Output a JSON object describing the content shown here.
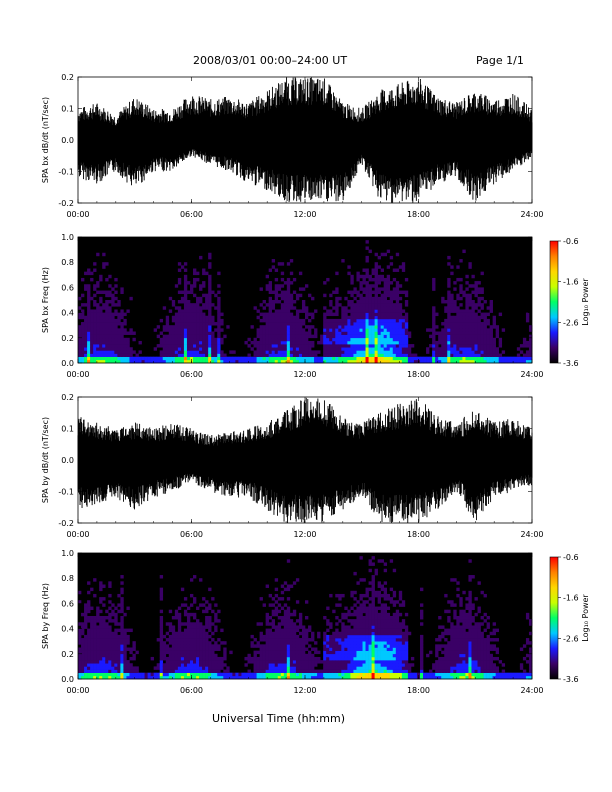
{
  "header": {
    "title": "2008/03/01   00:00–24:00 UT",
    "page": "Page 1/1"
  },
  "footer": {
    "xlabel": "Universal Time (hh:mm)"
  },
  "chart_data": [
    {
      "type": "line",
      "ylabel": "SPA bx dB/dt (nT/sec)",
      "xlim": [
        0,
        24
      ],
      "ylim": [
        -0.2,
        0.2
      ],
      "xticks": [
        "00:00",
        "06:00",
        "12:00",
        "18:00",
        "24:00"
      ],
      "yticks": [
        "-0.2",
        "-0.1",
        "0.0",
        "0.1",
        "0.2"
      ],
      "envelope": {
        "hours": [
          0,
          1,
          2,
          3,
          4,
          5,
          6,
          7,
          8,
          9,
          10,
          11,
          12,
          13,
          14,
          15,
          16,
          17,
          18,
          19,
          20,
          21,
          22,
          23,
          24
        ],
        "upper": [
          0.1,
          0.12,
          0.08,
          0.14,
          0.1,
          0.1,
          0.15,
          0.13,
          0.14,
          0.12,
          0.16,
          0.2,
          0.2,
          0.2,
          0.12,
          0.1,
          0.16,
          0.18,
          0.2,
          0.14,
          0.12,
          0.16,
          0.13,
          0.15,
          0.1
        ],
        "lower": [
          -0.12,
          -0.14,
          -0.1,
          -0.16,
          -0.1,
          -0.1,
          -0.05,
          -0.08,
          -0.1,
          -0.14,
          -0.16,
          -0.2,
          -0.2,
          -0.2,
          -0.2,
          -0.08,
          -0.2,
          -0.2,
          -0.2,
          -0.14,
          -0.12,
          -0.2,
          -0.14,
          -0.1,
          -0.06
        ]
      }
    },
    {
      "type": "heatmap",
      "ylabel": "SPA bx Freq (Hz)",
      "xlim": [
        0,
        24
      ],
      "ylim": [
        0.0,
        1.0
      ],
      "xticks": [
        "00:00",
        "06:00",
        "12:00",
        "18:00",
        "24:00"
      ],
      "yticks": [
        "0.0",
        "0.2",
        "0.4",
        "0.6",
        "0.8",
        "1.0"
      ],
      "colorbar": {
        "label": "Log₁₀ Power",
        "range": [
          -3.6,
          -0.6
        ],
        "ticks": [
          "-0.6",
          "-1.6",
          "-2.6",
          "-3.6"
        ],
        "colors": [
          "#000000",
          "#3a0066",
          "#1a1aff",
          "#00c8ff",
          "#00ff66",
          "#c8ff00",
          "#ffd700",
          "#ff8000",
          "#ff0000"
        ]
      }
    },
    {
      "type": "line",
      "ylabel": "SPA by dB/dt (nT/sec)",
      "xlim": [
        0,
        24
      ],
      "ylim": [
        -0.2,
        0.2
      ],
      "xticks": [
        "00:00",
        "06:00",
        "12:00",
        "18:00",
        "24:00"
      ],
      "yticks": [
        "-0.2",
        "-0.1",
        "0.0",
        "0.1",
        "0.2"
      ],
      "envelope": {
        "hours": [
          0,
          1,
          2,
          3,
          4,
          5,
          6,
          7,
          8,
          9,
          10,
          11,
          12,
          13,
          14,
          15,
          16,
          17,
          18,
          19,
          20,
          21,
          22,
          23,
          24
        ],
        "upper": [
          0.14,
          0.12,
          0.1,
          0.12,
          0.1,
          0.12,
          0.1,
          0.08,
          0.09,
          0.1,
          0.12,
          0.16,
          0.2,
          0.2,
          0.14,
          0.12,
          0.16,
          0.18,
          0.2,
          0.14,
          0.12,
          0.16,
          0.12,
          0.14,
          0.1
        ],
        "lower": [
          -0.16,
          -0.14,
          -0.12,
          -0.16,
          -0.12,
          -0.1,
          -0.07,
          -0.1,
          -0.12,
          -0.12,
          -0.16,
          -0.2,
          -0.2,
          -0.2,
          -0.16,
          -0.12,
          -0.2,
          -0.2,
          -0.2,
          -0.16,
          -0.1,
          -0.2,
          -0.12,
          -0.1,
          -0.08
        ]
      }
    },
    {
      "type": "heatmap",
      "ylabel": "SPA by Freq (Hz)",
      "xlim": [
        0,
        24
      ],
      "ylim": [
        0.0,
        1.0
      ],
      "xticks": [
        "00:00",
        "06:00",
        "12:00",
        "18:00",
        "24:00"
      ],
      "yticks": [
        "0.0",
        "0.2",
        "0.4",
        "0.6",
        "0.8",
        "1.0"
      ],
      "colorbar": {
        "label": "Log₁₀ Power",
        "range": [
          -3.6,
          -0.6
        ],
        "ticks": [
          "-0.6",
          "-1.6",
          "-2.6",
          "-3.6"
        ],
        "colors": [
          "#000000",
          "#3a0066",
          "#1a1aff",
          "#00c8ff",
          "#00ff66",
          "#c8ff00",
          "#ffd700",
          "#ff8000",
          "#ff0000"
        ]
      }
    }
  ]
}
